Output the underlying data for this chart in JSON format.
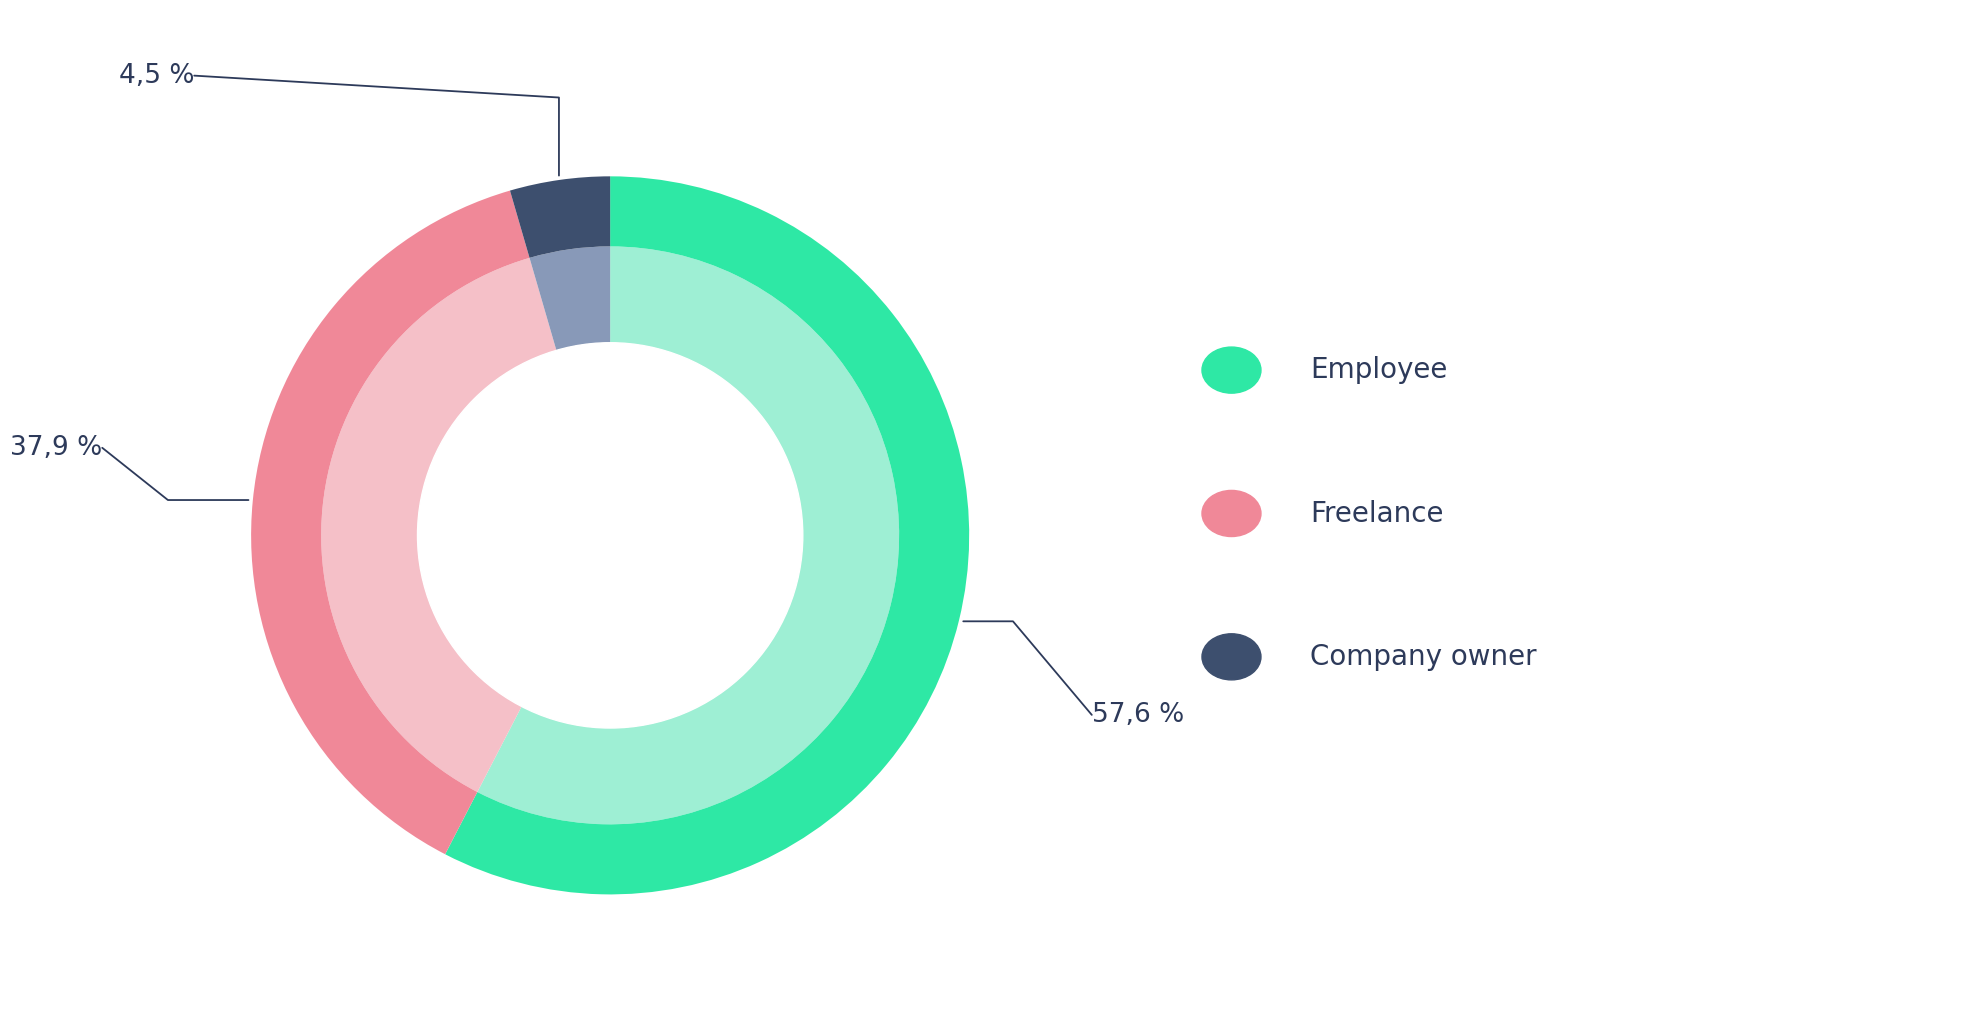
{
  "slices": [
    {
      "label": "Employee",
      "value": 57.6,
      "color": "#2ee8a5",
      "shadow_color": "#9eefd4"
    },
    {
      "label": "Freelance",
      "value": 37.9,
      "color": "#f08898",
      "shadow_color": "#f5c0c8"
    },
    {
      "label": "Company owner",
      "value": 4.5,
      "color": "#3d4f6e",
      "shadow_color": "#8899b8"
    }
  ],
  "bg_color": "#ffffff",
  "text_color": "#2d3a5a",
  "label_fontsize": 19,
  "legend_fontsize": 20,
  "main_outer_r": 0.82,
  "main_inner_r": 0.66,
  "shad_outer_r": 0.66,
  "shad_inner_r": 0.44,
  "start_angle": 90
}
